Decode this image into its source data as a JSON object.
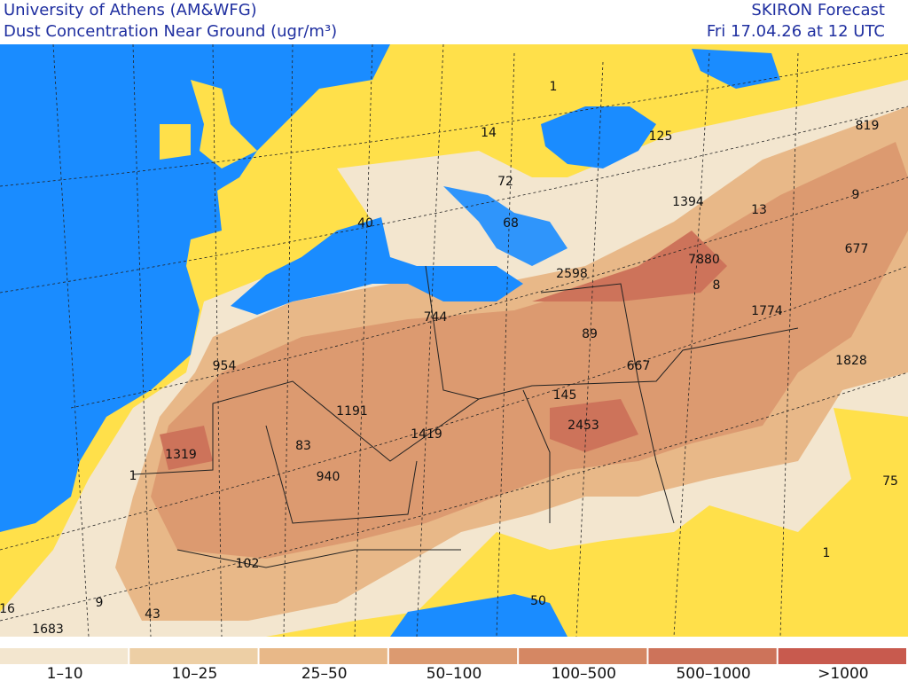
{
  "header": {
    "left": [
      "University of Athens (AM&WFG)",
      "Dust Concentration Near Ground (ugr/m³)"
    ],
    "right": [
      "SKIRON Forecast",
      "Fri 17.04.26 at 12 UTC"
    ]
  },
  "map": {
    "labels": [
      "1",
      "14",
      "125",
      "819",
      "72",
      "1394",
      "13",
      "9",
      "40",
      "68",
      "677",
      "7880",
      "2598",
      "8",
      "744",
      "1774",
      "89",
      "954",
      "667",
      "1828",
      "1191",
      "145",
      "2453",
      "1419",
      "1319",
      "83",
      "940",
      "1",
      "75",
      "102",
      "1",
      "16",
      "9",
      "43",
      "1683",
      "50"
    ]
  },
  "legend": {
    "items": [
      {
        "label": "1–10",
        "color": "#f3e6cf"
      },
      {
        "label": "10–25",
        "color": "#edcfa5"
      },
      {
        "label": "25–50",
        "color": "#e8b888"
      },
      {
        "label": "50–100",
        "color": "#dc9a70"
      },
      {
        "label": "100–500",
        "color": "#d58763"
      },
      {
        "label": "500–1000",
        "color": "#cd735a"
      },
      {
        "label": ">1000",
        "color": "#c85a4e"
      }
    ]
  }
}
